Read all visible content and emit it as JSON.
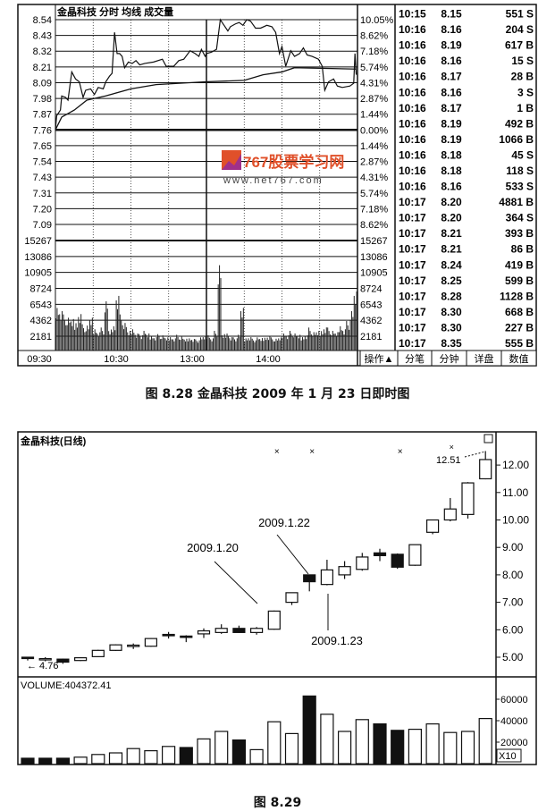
{
  "figure1": {
    "caption": "图 8.28   金晶科技 2009 年 1 月 23 日即时图",
    "header": "金晶科技   分时  均线  成交量",
    "tabs": [
      "操作▲",
      "分笔",
      "分钟",
      "详盘",
      "数值"
    ],
    "watermark": {
      "logo_text": "767股票学习网",
      "url_text": "www.net767.com",
      "colors": {
        "orange": "#e0502a",
        "purple": "#a0308a"
      }
    },
    "trades": [
      [
        "10:15",
        "8.15",
        "551 S"
      ],
      [
        "10:16",
        "8.16",
        "204 S"
      ],
      [
        "10:16",
        "8.19",
        "617 B"
      ],
      [
        "10:16",
        "8.16",
        "15 S"
      ],
      [
        "10:16",
        "8.17",
        "28 B"
      ],
      [
        "10:16",
        "8.16",
        "3 S"
      ],
      [
        "10:16",
        "8.17",
        "1 B"
      ],
      [
        "10:16",
        "8.19",
        "492 B"
      ],
      [
        "10:16",
        "8.19",
        "1066 B"
      ],
      [
        "10:16",
        "8.18",
        "45 S"
      ],
      [
        "10:16",
        "8.18",
        "118 S"
      ],
      [
        "10:16",
        "8.16",
        "533 S"
      ],
      [
        "10:17",
        "8.20",
        "4881 B"
      ],
      [
        "10:17",
        "8.20",
        "364 S"
      ],
      [
        "10:17",
        "8.21",
        "393 B"
      ],
      [
        "10:17",
        "8.21",
        "86 B"
      ],
      [
        "10:17",
        "8.24",
        "419 B"
      ],
      [
        "10:17",
        "8.25",
        "599 B"
      ],
      [
        "10:17",
        "8.28",
        "1128 B"
      ],
      [
        "10:17",
        "8.30",
        "668 B"
      ],
      [
        "10:17",
        "8.30",
        "227 B"
      ],
      [
        "10:17",
        "8.35",
        "555 B"
      ]
    ]
  },
  "chart_data": [
    {
      "type": "line",
      "title": "金晶科技   分时  均线  成交量",
      "price_ticks": [
        "8.54",
        "8.43",
        "8.32",
        "8.21",
        "8.09",
        "7.98",
        "7.87",
        "7.76",
        "7.65",
        "7.54",
        "7.43",
        "7.31",
        "7.20",
        "7.09"
      ],
      "pct_ticks": [
        "10.05%",
        "8.62%",
        "7.18%",
        "5.74%",
        "4.31%",
        "2.87%",
        "1.44%",
        "0.00%",
        "1.44%",
        "2.87%",
        "4.31%",
        "5.74%",
        "7.18%",
        "8.62%"
      ],
      "volume_ticks": [
        "15267",
        "13086",
        "10905",
        "8724",
        "6543",
        "4362",
        "2181"
      ],
      "x_ticks": [
        "09:30",
        "10:30",
        "13:00",
        "14:00"
      ],
      "ylim": [
        7.09,
        8.54
      ],
      "prev_close": 7.76,
      "price_series": [
        [
          "09:30",
          7.76
        ],
        [
          "09:31",
          7.86
        ],
        [
          "09:34",
          7.9
        ],
        [
          "09:35",
          8.0
        ],
        [
          "09:38",
          7.99
        ],
        [
          "09:40",
          7.97
        ],
        [
          "09:43",
          8.17
        ],
        [
          "09:46",
          8.12
        ],
        [
          "09:49",
          8.1
        ],
        [
          "09:52",
          7.99
        ],
        [
          "09:54",
          8.04
        ],
        [
          "09:58",
          8.05
        ],
        [
          "10:01",
          8.01
        ],
        [
          "10:04",
          8.06
        ],
        [
          "10:08",
          8.05
        ],
        [
          "10:10",
          8.1
        ],
        [
          "10:13",
          8.14
        ],
        [
          "10:15",
          8.16
        ],
        [
          "10:17",
          8.45
        ],
        [
          "10:19",
          8.3
        ],
        [
          "10:21",
          8.3
        ],
        [
          "10:23",
          8.28
        ],
        [
          "10:25",
          8.2
        ],
        [
          "10:28",
          8.24
        ],
        [
          "10:31",
          8.23
        ],
        [
          "10:34",
          8.25
        ],
        [
          "10:37",
          8.22
        ],
        [
          "10:41",
          8.23
        ],
        [
          "10:48",
          8.24
        ],
        [
          "10:55",
          8.26
        ],
        [
          "10:58",
          8.21
        ],
        [
          "11:04",
          8.21
        ],
        [
          "11:08",
          8.25
        ],
        [
          "11:12",
          8.26
        ],
        [
          "11:17",
          8.32
        ],
        [
          "11:21",
          8.3
        ],
        [
          "11:24",
          8.28
        ],
        [
          "11:26",
          8.33
        ],
        [
          "11:29",
          8.28
        ],
        [
          "13:00",
          8.3
        ],
        [
          "13:04",
          8.31
        ],
        [
          "13:08",
          8.33
        ],
        [
          "13:11",
          8.54
        ],
        [
          "13:14",
          8.5
        ],
        [
          "13:17",
          8.46
        ],
        [
          "13:19",
          8.49
        ],
        [
          "13:23",
          8.51
        ],
        [
          "13:26",
          8.52
        ],
        [
          "13:29",
          8.5
        ],
        [
          "13:32",
          8.54
        ],
        [
          "13:35",
          8.53
        ],
        [
          "13:39",
          8.48
        ],
        [
          "13:43",
          8.48
        ],
        [
          "13:48",
          8.5
        ],
        [
          "13:52",
          8.49
        ],
        [
          "13:55",
          8.45
        ],
        [
          "13:58",
          8.3
        ],
        [
          "14:00",
          8.35
        ],
        [
          "14:03",
          8.21
        ],
        [
          "14:07",
          8.32
        ],
        [
          "14:10",
          8.28
        ],
        [
          "14:14",
          8.3
        ],
        [
          "14:17",
          8.34
        ],
        [
          "14:20",
          8.29
        ],
        [
          "14:24",
          8.28
        ],
        [
          "14:29",
          8.26
        ],
        [
          "14:32",
          8.21
        ],
        [
          "14:34",
          8.04
        ],
        [
          "14:37",
          8.1
        ],
        [
          "14:41",
          8.12
        ],
        [
          "14:44",
          8.07
        ],
        [
          "14:48",
          8.06
        ],
        [
          "14:54",
          8.07
        ],
        [
          "14:57",
          8.09
        ],
        [
          "14:58",
          8.3
        ],
        [
          "14:59",
          8.15
        ]
      ],
      "avg_series": [
        [
          "09:30",
          7.76
        ],
        [
          "09:35",
          7.85
        ],
        [
          "09:45",
          7.9
        ],
        [
          "09:55",
          7.97
        ],
        [
          "10:10",
          8.0
        ],
        [
          "10:30",
          8.05
        ],
        [
          "10:50",
          8.08
        ],
        [
          "11:29",
          8.1
        ],
        [
          "13:30",
          8.11
        ],
        [
          "13:45",
          8.15
        ],
        [
          "14:00",
          8.17
        ],
        [
          "14:10",
          8.2
        ],
        [
          "14:59",
          8.19
        ]
      ],
      "volume_3min": [
        7000,
        6500,
        5500,
        5000,
        4800,
        4500,
        6000,
        4000,
        3800,
        5000,
        3500,
        3000,
        3500,
        7500,
        3200,
        4000,
        9000,
        5500,
        4200,
        3000,
        3500,
        2800,
        2500,
        3000,
        2600,
        2400,
        2200,
        2500,
        2300,
        2000,
        2200,
        2000,
        2400,
        2100,
        1800,
        2000,
        1900,
        1700,
        2000,
        2200,
        2500,
        2000,
        3000,
        13000,
        2500,
        2800,
        2200,
        2000,
        2400,
        6500,
        2000,
        2200,
        1800,
        2000,
        1900,
        2100,
        2300,
        2000,
        1800,
        2000,
        2800,
        2500,
        3000,
        2600,
        2400,
        2200,
        2500,
        3500,
        2800,
        3000,
        3200,
        3800,
        3500,
        3000,
        2800,
        4000,
        3500,
        4500,
        6000,
        9000
      ]
    },
    {
      "type": "candlestick",
      "title": "金晶科技(日线)",
      "caption": "图 8.29",
      "y_ticks": [
        "12.00",
        "11.00",
        "10.00",
        "9.00",
        "8.00",
        "7.00",
        "6.00",
        "5.00"
      ],
      "ylim": [
        4.5,
        12.7
      ],
      "ohlc": [
        [
          5.0,
          5.0,
          4.88,
          4.97
        ],
        [
          4.95,
          5.0,
          4.85,
          4.95
        ],
        [
          4.93,
          4.95,
          4.76,
          4.82
        ],
        [
          4.88,
          4.98,
          4.86,
          4.98
        ],
        [
          5.02,
          5.27,
          5.0,
          5.25
        ],
        [
          5.25,
          5.47,
          5.23,
          5.45
        ],
        [
          5.4,
          5.5,
          5.3,
          5.44
        ],
        [
          5.4,
          5.7,
          5.38,
          5.68
        ],
        [
          5.83,
          5.92,
          5.68,
          5.8
        ],
        [
          5.77,
          5.8,
          5.55,
          5.74
        ],
        [
          5.85,
          6.05,
          5.7,
          5.96
        ],
        [
          5.9,
          6.2,
          5.85,
          6.05
        ],
        [
          6.05,
          6.15,
          5.88,
          5.9
        ],
        [
          5.9,
          6.1,
          5.82,
          6.05
        ],
        [
          6.02,
          6.7,
          6.0,
          6.68
        ],
        [
          7.0,
          7.35,
          6.9,
          7.35
        ],
        [
          8.0,
          8.0,
          7.4,
          7.75
        ],
        [
          7.65,
          8.55,
          7.62,
          8.18
        ],
        [
          8.0,
          8.5,
          7.85,
          8.3
        ],
        [
          8.2,
          8.8,
          8.15,
          8.65
        ],
        [
          8.8,
          8.95,
          8.5,
          8.7
        ],
        [
          8.75,
          8.78,
          8.22,
          8.28
        ],
        [
          8.35,
          9.1,
          8.33,
          9.1
        ],
        [
          9.55,
          10.0,
          9.48,
          10.0
        ],
        [
          10.0,
          10.8,
          9.95,
          10.4
        ],
        [
          10.2,
          11.38,
          10.05,
          11.35
        ],
        [
          11.5,
          12.51,
          11.48,
          12.2
        ]
      ],
      "annotations": [
        {
          "text": "2009.1.20",
          "index": 14
        },
        {
          "text": "2009.1.22",
          "index": 16
        },
        {
          "text": "2009.1.23",
          "index": 17
        },
        {
          "text": "4.76",
          "index": 2,
          "kind": "low"
        },
        {
          "text": "12.51",
          "index": 26,
          "kind": "high"
        }
      ],
      "markers_x_index": [
        14,
        16,
        21
      ],
      "volume_label": "VOLUME:404372.41",
      "volume_ticks": [
        "60000",
        "40000",
        "20000"
      ],
      "volume_unit": "X10",
      "volume": [
        5000,
        5000,
        5000,
        6000,
        8500,
        10000,
        14000,
        12000,
        16000,
        15000,
        23000,
        30000,
        22000,
        13000,
        39000,
        28000,
        63000,
        46000,
        30000,
        41000,
        37000,
        31000,
        32000,
        37000,
        29000,
        30000,
        42000
      ],
      "volume_down": [
        true,
        true,
        true,
        false,
        false,
        false,
        false,
        false,
        false,
        true,
        false,
        false,
        true,
        false,
        false,
        false,
        true,
        false,
        false,
        false,
        true,
        true,
        false,
        false,
        false,
        false,
        false
      ]
    }
  ]
}
